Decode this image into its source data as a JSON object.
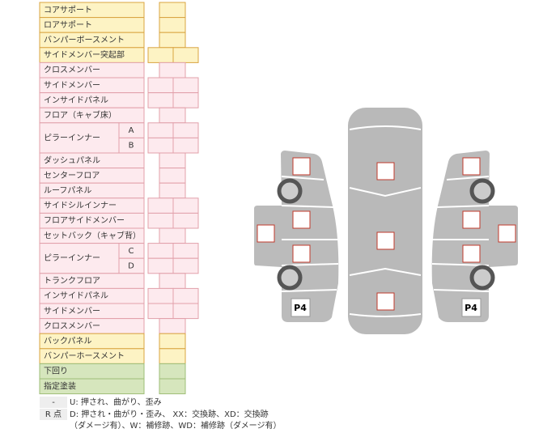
{
  "rows": [
    {
      "label": "コアサポート"
    },
    {
      "label": "ロアサポート"
    },
    {
      "label": "バンパーボースメント"
    },
    {
      "label": "サイドメンバー突起部"
    },
    {
      "label": "クロスメンバー"
    },
    {
      "label": "サイドメンバー"
    },
    {
      "label": "インサイドパネル"
    },
    {
      "label": "フロア（キャブ床）"
    },
    {
      "label": "ピラーインナー",
      "sub": [
        "A",
        "B"
      ]
    },
    {
      "label": "ダッシュパネル"
    },
    {
      "label": "センターフロア"
    },
    {
      "label": "ルーフパネル"
    },
    {
      "label": "サイドシルインナー"
    },
    {
      "label": "フロアサイドメンバー"
    },
    {
      "label": "セットバック（キャブ背）"
    },
    {
      "label": "ピラーインナー",
      "sub": [
        "C",
        "D"
      ]
    },
    {
      "label": "トランクフロア"
    },
    {
      "label": "インサイドパネル"
    },
    {
      "label": "サイドメンバー"
    },
    {
      "label": "クロスメンバー"
    },
    {
      "label": "バックパネル"
    },
    {
      "label": "バンパーホースメント"
    },
    {
      "label": "下回り"
    },
    {
      "label": "指定塗装"
    }
  ],
  "legend": [
    {
      "key": "-",
      "text": "U: 押され、曲がり、歪み"
    },
    {
      "key": "R 点",
      "text": "D: 押され・曲がり・歪み、 XX：交換跡、XD：交換跡",
      "text2": "（ダメージ有）、W：補修跡、WD：補修跡（ダメージ有）"
    }
  ],
  "diagram": {
    "left_label": "P4",
    "right_label": "P4"
  }
}
